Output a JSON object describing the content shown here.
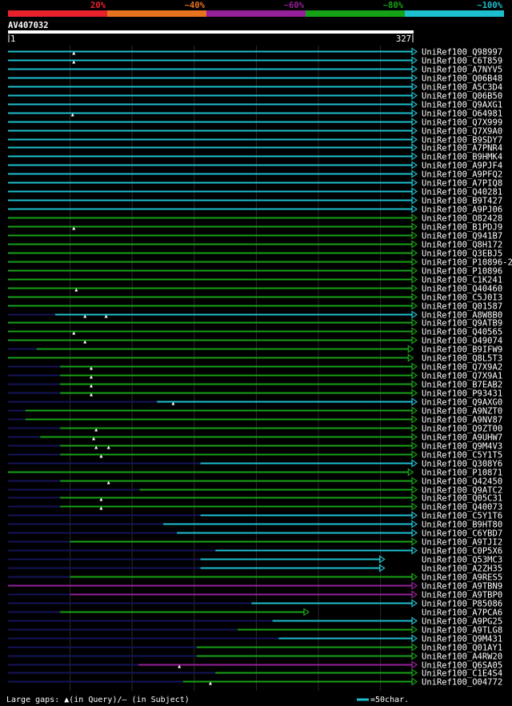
{
  "query_id": "AV407032",
  "ruler": {
    "start": "1",
    "end": "327"
  },
  "legend": [
    {
      "label": "20%",
      "color": "#e8212b"
    },
    {
      "label": "~40%",
      "color": "#e8731e"
    },
    {
      "label": "~60%",
      "color": "#96209a"
    },
    {
      "label": "~80%",
      "color": "#16a216"
    },
    {
      "label": "~100%",
      "color": "#1dbfcf"
    }
  ],
  "footer": {
    "gaps_note": "Large gaps: ▲(in Query)/– (in Subject)",
    "scale_note": "=50char."
  },
  "chart_data": {
    "type": "alignment-overview",
    "query_length": 327,
    "x_unit": "query residue",
    "identity_bins": [
      "20%",
      "~40%",
      "~60%",
      "~80%",
      "~100%"
    ],
    "hits": [
      {
        "id": "UniRef100_Q98997",
        "start": 1,
        "end": 327,
        "identity": "~100%",
        "arrow": true,
        "gaps": [
          54
        ]
      },
      {
        "id": "UniRef100_C6T859",
        "start": 1,
        "end": 327,
        "identity": "~100%",
        "arrow": true,
        "gaps": [
          54
        ]
      },
      {
        "id": "UniRef100_A7NYV5",
        "start": 1,
        "end": 327,
        "identity": "~100%",
        "arrow": true,
        "gaps": []
      },
      {
        "id": "UniRef100_Q06B48",
        "start": 1,
        "end": 327,
        "identity": "~100%",
        "arrow": true,
        "gaps": []
      },
      {
        "id": "UniRef100_A5C3D4",
        "start": 1,
        "end": 327,
        "identity": "~100%",
        "arrow": true,
        "gaps": []
      },
      {
        "id": "UniRef100_Q06B50",
        "start": 1,
        "end": 327,
        "identity": "~100%",
        "arrow": true,
        "gaps": []
      },
      {
        "id": "UniRef100_Q9AXG1",
        "start": 1,
        "end": 327,
        "identity": "~100%",
        "arrow": true,
        "gaps": []
      },
      {
        "id": "UniRef100_O64981",
        "start": 1,
        "end": 327,
        "identity": "~100%",
        "arrow": true,
        "gaps": [
          53
        ]
      },
      {
        "id": "UniRef100_Q7X999",
        "start": 1,
        "end": 327,
        "identity": "~100%",
        "arrow": true,
        "gaps": []
      },
      {
        "id": "UniRef100_Q7X9A0",
        "start": 1,
        "end": 327,
        "identity": "~100%",
        "arrow": true,
        "gaps": []
      },
      {
        "id": "UniRef100_B9SDY7",
        "start": 1,
        "end": 327,
        "identity": "~100%",
        "arrow": true,
        "gaps": []
      },
      {
        "id": "UniRef100_A7PNR4",
        "start": 1,
        "end": 327,
        "identity": "~100%",
        "arrow": true,
        "gaps": []
      },
      {
        "id": "UniRef100_B9HMK4",
        "start": 1,
        "end": 327,
        "identity": "~100%",
        "arrow": true,
        "gaps": []
      },
      {
        "id": "UniRef100_A9PJF4",
        "start": 1,
        "end": 327,
        "identity": "~100%",
        "arrow": true,
        "gaps": []
      },
      {
        "id": "UniRef100_A9PFQ2",
        "start": 1,
        "end": 327,
        "identity": "~100%",
        "arrow": true,
        "gaps": []
      },
      {
        "id": "UniRef100_A7PIQ8",
        "start": 1,
        "end": 327,
        "identity": "~100%",
        "arrow": true,
        "gaps": []
      },
      {
        "id": "UniRef100_Q40281",
        "start": 1,
        "end": 327,
        "identity": "~100%",
        "arrow": true,
        "gaps": []
      },
      {
        "id": "UniRef100_B9T427",
        "start": 1,
        "end": 327,
        "identity": "~100%",
        "arrow": true,
        "gaps": []
      },
      {
        "id": "UniRef100_A9PJ06",
        "start": 1,
        "end": 327,
        "identity": "~100%",
        "arrow": true,
        "gaps": []
      },
      {
        "id": "UniRef100_O82428",
        "start": 1,
        "end": 327,
        "identity": "~80%",
        "arrow": true,
        "gaps": []
      },
      {
        "id": "UniRef100_B1PDJ9",
        "start": 1,
        "end": 327,
        "identity": "~80%",
        "arrow": true,
        "gaps": [
          54
        ]
      },
      {
        "id": "UniRef100_Q941B7",
        "start": 1,
        "end": 327,
        "identity": "~80%",
        "arrow": true,
        "gaps": []
      },
      {
        "id": "UniRef100_Q8H172",
        "start": 1,
        "end": 327,
        "identity": "~80%",
        "arrow": true,
        "gaps": []
      },
      {
        "id": "UniRef100_Q3EBJ5",
        "start": 1,
        "end": 327,
        "identity": "~80%",
        "arrow": true,
        "gaps": []
      },
      {
        "id": "UniRef100_P10896-2",
        "start": 1,
        "end": 327,
        "identity": "~80%",
        "arrow": true,
        "gaps": []
      },
      {
        "id": "UniRef100_P10896",
        "start": 1,
        "end": 327,
        "identity": "~80%",
        "arrow": true,
        "gaps": []
      },
      {
        "id": "UniRef100_C1K241",
        "start": 1,
        "end": 327,
        "identity": "~80%",
        "arrow": true,
        "gaps": []
      },
      {
        "id": "UniRef100_Q40460",
        "start": 1,
        "end": 327,
        "identity": "~80%",
        "arrow": true,
        "gaps": [
          56
        ]
      },
      {
        "id": "UniRef100_C5J0I3",
        "start": 1,
        "end": 327,
        "identity": "~80%",
        "arrow": true,
        "gaps": []
      },
      {
        "id": "UniRef100_Q01587",
        "start": 1,
        "end": 327,
        "identity": "~80%",
        "arrow": true,
        "gaps": []
      },
      {
        "id": "UniRef100_A8W8B0",
        "start": 39,
        "end": 327,
        "identity": "~100%",
        "arrow": true,
        "gaps": [
          63,
          80
        ]
      },
      {
        "id": "UniRef100_Q9ATB9",
        "start": 1,
        "end": 327,
        "identity": "~80%",
        "arrow": true,
        "gaps": []
      },
      {
        "id": "UniRef100_Q40565",
        "start": 1,
        "end": 327,
        "identity": "~80%",
        "arrow": true,
        "gaps": [
          54
        ]
      },
      {
        "id": "UniRef100_O49074",
        "start": 1,
        "end": 327,
        "identity": "~80%",
        "arrow": true,
        "gaps": [
          63
        ]
      },
      {
        "id": "UniRef100_B9IFW9",
        "start": 24,
        "end": 324,
        "identity": "~80%",
        "arrow": true,
        "gaps": []
      },
      {
        "id": "UniRef100_Q8L5T3",
        "start": 1,
        "end": 324,
        "identity": "~80%",
        "arrow": true,
        "gaps": []
      },
      {
        "id": "UniRef100_Q7X9A2",
        "start": 43,
        "end": 327,
        "identity": "~80%",
        "arrow": true,
        "gaps": [
          68
        ]
      },
      {
        "id": "UniRef100_Q7X9A1",
        "start": 43,
        "end": 327,
        "identity": "~80%",
        "arrow": true,
        "gaps": [
          68
        ]
      },
      {
        "id": "UniRef100_B7EAB2",
        "start": 43,
        "end": 327,
        "identity": "~80%",
        "arrow": true,
        "gaps": [
          68
        ]
      },
      {
        "id": "UniRef100_P93431",
        "start": 43,
        "end": 327,
        "identity": "~80%",
        "arrow": true,
        "gaps": [
          68
        ]
      },
      {
        "id": "UniRef100_Q9AXG0",
        "start": 121,
        "end": 327,
        "identity": "~100%",
        "arrow": true,
        "gaps": [
          134
        ]
      },
      {
        "id": "UniRef100_A9NZT0",
        "start": 15,
        "end": 327,
        "identity": "~80%",
        "arrow": true,
        "gaps": []
      },
      {
        "id": "UniRef100_A9NV87",
        "start": 15,
        "end": 327,
        "identity": "~80%",
        "arrow": true,
        "gaps": []
      },
      {
        "id": "UniRef100_Q9ZT00",
        "start": 43,
        "end": 327,
        "identity": "~80%",
        "arrow": true,
        "gaps": [
          72
        ]
      },
      {
        "id": "UniRef100_A9UHW7",
        "start": 27,
        "end": 327,
        "identity": "~80%",
        "arrow": true,
        "gaps": [
          70
        ]
      },
      {
        "id": "UniRef100_Q9M4V3",
        "start": 43,
        "end": 327,
        "identity": "~80%",
        "arrow": true,
        "gaps": [
          72,
          82
        ]
      },
      {
        "id": "UniRef100_C5Y1T5",
        "start": 43,
        "end": 327,
        "identity": "~80%",
        "arrow": true,
        "gaps": [
          76
        ]
      },
      {
        "id": "UniRef100_Q308Y6",
        "start": 156,
        "end": 327,
        "identity": "~100%",
        "arrow": true,
        "gaps": []
      },
      {
        "id": "UniRef100_P10871",
        "start": 1,
        "end": 324,
        "identity": "~80%",
        "arrow": true,
        "gaps": []
      },
      {
        "id": "UniRef100_Q42450",
        "start": 43,
        "end": 327,
        "identity": "~80%",
        "arrow": true,
        "gaps": [
          82
        ]
      },
      {
        "id": "UniRef100_Q9ATC2",
        "start": 107,
        "end": 327,
        "identity": "~80%",
        "arrow": true,
        "gaps": []
      },
      {
        "id": "UniRef100_Q05C31",
        "start": 43,
        "end": 327,
        "identity": "~80%",
        "arrow": true,
        "gaps": [
          76
        ]
      },
      {
        "id": "UniRef100_Q40073",
        "start": 43,
        "end": 327,
        "identity": "~80%",
        "arrow": true,
        "gaps": [
          76
        ]
      },
      {
        "id": "UniRef100_C5Y1T6",
        "start": 156,
        "end": 327,
        "identity": "~100%",
        "arrow": true,
        "gaps": []
      },
      {
        "id": "UniRef100_B9HT80",
        "start": 126,
        "end": 327,
        "identity": "~100%",
        "arrow": true,
        "gaps": []
      },
      {
        "id": "UniRef100_C6YBD7",
        "start": 137,
        "end": 327,
        "identity": "~100%",
        "arrow": true,
        "gaps": []
      },
      {
        "id": "UniRef100_A9TJI2",
        "start": 51,
        "end": 327,
        "identity": "~80%",
        "arrow": true,
        "gaps": []
      },
      {
        "id": "UniRef100_C0P5X6",
        "start": 168,
        "end": 327,
        "identity": "~100%",
        "arrow": true,
        "gaps": []
      },
      {
        "id": "UniRef100_Q53MC3",
        "start": 156,
        "end": 301,
        "identity": "~100%",
        "arrow": true,
        "gaps": []
      },
      {
        "id": "UniRef100_A2ZH35",
        "start": 156,
        "end": 301,
        "identity": "~100%",
        "arrow": true,
        "gaps": []
      },
      {
        "id": "UniRef100_A9RES5",
        "start": 51,
        "end": 327,
        "identity": "~80%",
        "arrow": true,
        "gaps": []
      },
      {
        "id": "UniRef100_A9TBN9",
        "start": 1,
        "end": 327,
        "identity": "~60%",
        "arrow": true,
        "gaps": []
      },
      {
        "id": "UniRef100_A9TBP0",
        "start": 51,
        "end": 327,
        "identity": "~60%",
        "arrow": true,
        "gaps": []
      },
      {
        "id": "UniRef100_P85086",
        "start": 197,
        "end": 327,
        "identity": "~100%",
        "arrow": true,
        "gaps": []
      },
      {
        "id": "UniRef100_A7PCA6",
        "start": 43,
        "end": 240,
        "identity": "~80%",
        "arrow": true,
        "gaps": []
      },
      {
        "id": "UniRef100_A9PG25",
        "start": 214,
        "end": 327,
        "identity": "~100%",
        "arrow": true,
        "gaps": []
      },
      {
        "id": "UniRef100_A9TLG8",
        "start": 186,
        "end": 327,
        "identity": "~80%",
        "arrow": true,
        "gaps": []
      },
      {
        "id": "UniRef100_Q9M431",
        "start": 219,
        "end": 327,
        "identity": "~100%",
        "arrow": true,
        "gaps": []
      },
      {
        "id": "UniRef100_Q01AY1",
        "start": 153,
        "end": 327,
        "identity": "~80%",
        "arrow": true,
        "gaps": []
      },
      {
        "id": "UniRef100_A4RW20",
        "start": 153,
        "end": 327,
        "identity": "~80%",
        "arrow": true,
        "gaps": []
      },
      {
        "id": "UniRef100_Q6SA05",
        "start": 106,
        "end": 327,
        "identity": "~60%",
        "arrow": true,
        "gaps": [
          139
        ]
      },
      {
        "id": "UniRef100_C1E4S4",
        "start": 168,
        "end": 327,
        "identity": "~80%",
        "arrow": true,
        "gaps": []
      },
      {
        "id": "UniRef100_O04772",
        "start": 142,
        "end": 327,
        "identity": "~80%",
        "arrow": true,
        "gaps": [
          164
        ]
      }
    ]
  }
}
